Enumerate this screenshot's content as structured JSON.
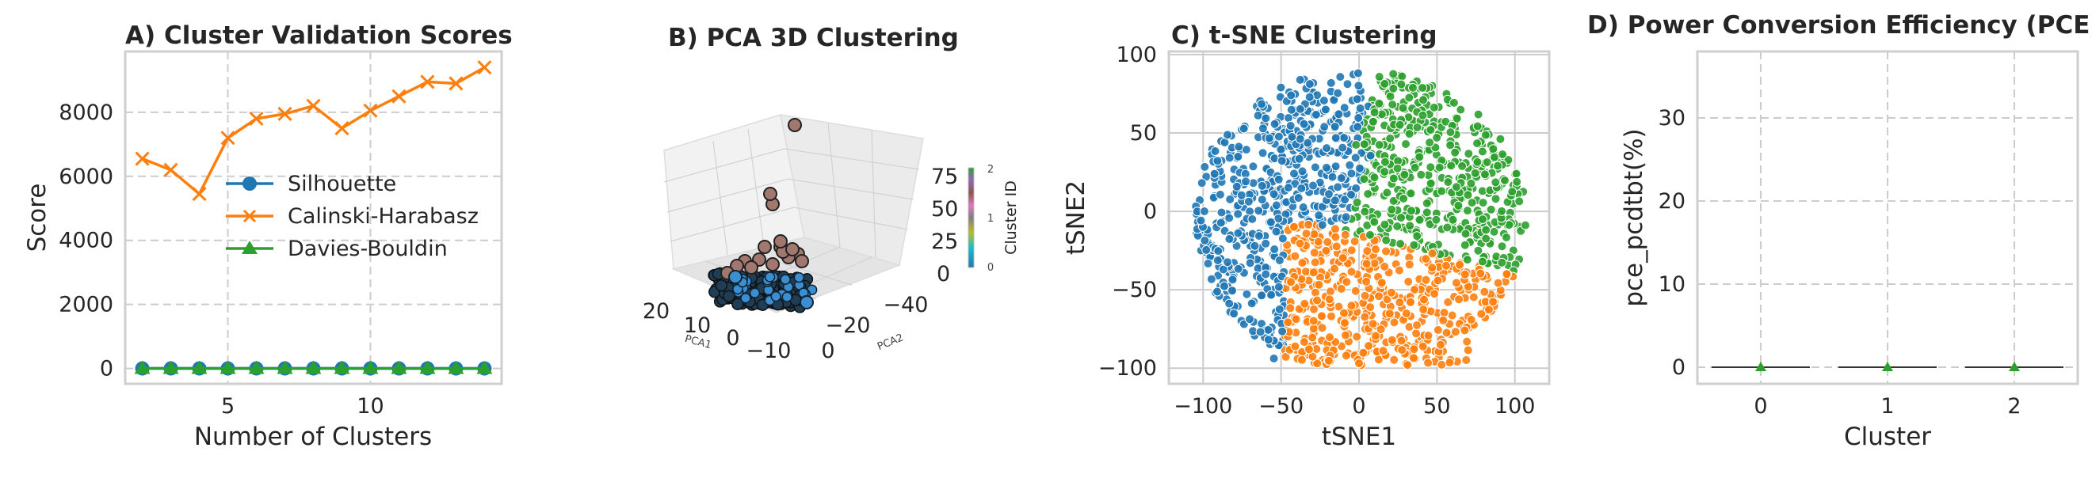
{
  "colors": {
    "blue": "#1f77b4",
    "orange": "#ff7f0e",
    "green": "#2ca02c",
    "brown": "#a1776e"
  },
  "chart_data": [
    {
      "type": "line",
      "title": "A) Cluster Validation Scores",
      "xlabel": "Number of Clusters",
      "ylabel": "Score",
      "x": [
        2,
        3,
        4,
        5,
        6,
        7,
        8,
        9,
        10,
        11,
        12,
        13,
        14
      ],
      "xlim": [
        1.4,
        14.6
      ],
      "ylim": [
        -480,
        9900
      ],
      "xticks": [
        5,
        10
      ],
      "yticks": [
        0,
        2000,
        4000,
        6000,
        8000
      ],
      "grid": true,
      "legend_position": "center",
      "series": [
        {
          "name": "Silhouette",
          "marker": "o",
          "color": "#1f77b4",
          "values": [
            0.52,
            0.55,
            0.51,
            0.48,
            0.45,
            0.44,
            0.43,
            0.41,
            0.42,
            0.4,
            0.39,
            0.38,
            0.37
          ]
        },
        {
          "name": "Calinski-Harabasz",
          "marker": "x",
          "color": "#ff7f0e",
          "values": [
            6550,
            6200,
            5450,
            7200,
            7800,
            7950,
            8200,
            7500,
            8050,
            8500,
            8950,
            8900,
            9400
          ]
        },
        {
          "name": "Davies-Bouldin",
          "marker": "^",
          "color": "#2ca02c",
          "values": [
            0.75,
            0.72,
            0.8,
            0.85,
            0.9,
            0.88,
            0.92,
            0.95,
            0.93,
            0.96,
            0.98,
            1.0,
            1.02
          ]
        }
      ]
    },
    {
      "type": "scatter",
      "title": "B) PCA 3D Clustering",
      "xlabel": "PCA1",
      "ylabel": "PCA2",
      "x_ticks": [
        "20",
        "10",
        "0",
        "−10"
      ],
      "y_ticks": [
        "−20",
        "0",
        "−40"
      ],
      "z_ticks": [
        "0",
        "25",
        "50",
        "75"
      ],
      "colorbar": {
        "label": "Cluster ID",
        "ticks": [
          "0",
          "1",
          "2"
        ]
      }
    },
    {
      "type": "scatter",
      "title": "C) t-SNE Clustering",
      "xlabel": "tSNE1",
      "ylabel": "tSNE2",
      "xlim": [
        -122,
        122
      ],
      "ylim": [
        -110,
        102
      ],
      "xticks": [
        -100,
        -50,
        0,
        50,
        100
      ],
      "yticks": [
        -100,
        -50,
        0,
        50,
        100
      ],
      "grid": true,
      "clusters": [
        {
          "label": "0",
          "color": "#1f77b4",
          "center": [
            -55,
            15
          ]
        },
        {
          "label": "1",
          "color": "#ff7f0e",
          "center": [
            15,
            -65
          ]
        },
        {
          "label": "2",
          "color": "#2ca02c",
          "center": [
            45,
            30
          ]
        }
      ]
    },
    {
      "type": "box",
      "title": "D) Power Conversion Efficiency (PCE)",
      "xlabel": "Cluster",
      "ylabel": "pce_pcdtbt(%)",
      "categories": [
        "0",
        "1",
        "2"
      ],
      "values": [
        0,
        0,
        0
      ],
      "ylim": [
        -2,
        38
      ],
      "yticks": [
        0,
        10,
        20,
        30
      ],
      "grid": true
    }
  ]
}
